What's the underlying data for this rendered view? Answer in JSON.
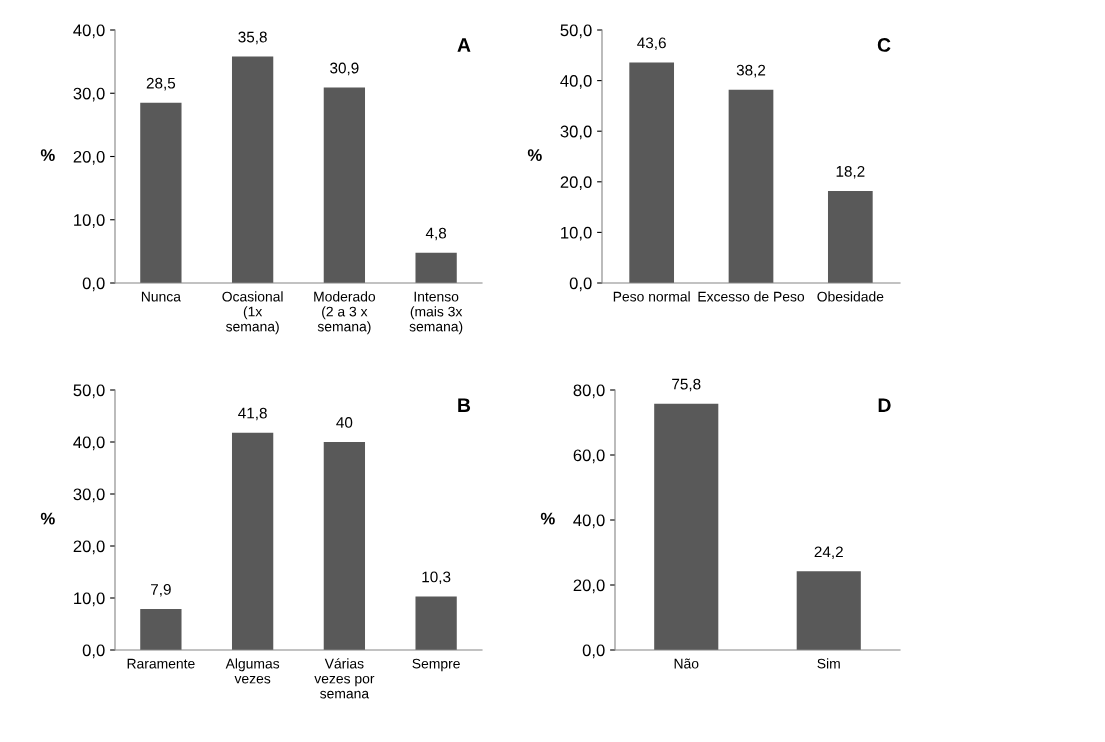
{
  "chart_data": [
    {
      "type": "bar",
      "ylabel": "%",
      "annotations": [
        "A"
      ],
      "categories": [
        "Nunca",
        "Ocasional\n(1x\nsemana)",
        "Moderado\n(2 a 3 x\nsemana)",
        "Intenso\n(mais 3x\nsemana)"
      ],
      "values": [
        28.5,
        35.8,
        30.9,
        4.8
      ],
      "value_labels": [
        "28,5",
        "35,8",
        "30,9",
        "4,8"
      ],
      "color": "#595959",
      "ylim": [
        0,
        40
      ],
      "yticks": [
        {
          "value": 0,
          "label": "0,0"
        },
        {
          "value": 10,
          "label": "10,0"
        },
        {
          "value": 20,
          "label": "20,0"
        },
        {
          "value": 30,
          "label": "30,0"
        },
        {
          "value": 40,
          "label": "40,0"
        }
      ]
    },
    {
      "type": "bar",
      "ylabel": "%",
      "annotations": [
        "C"
      ],
      "categories": [
        "Peso normal",
        "Excesso de Peso",
        "Obesidade"
      ],
      "values": [
        43.6,
        38.2,
        18.2
      ],
      "value_labels": [
        "43,6",
        "38,2",
        "18,2"
      ],
      "color": "#595959",
      "ylim": [
        0,
        50
      ],
      "yticks": [
        {
          "value": 0,
          "label": "0,0"
        },
        {
          "value": 10,
          "label": "10,0"
        },
        {
          "value": 20,
          "label": "20,0"
        },
        {
          "value": 30,
          "label": "30,0"
        },
        {
          "value": 40,
          "label": "40,0"
        },
        {
          "value": 50,
          "label": "50,0"
        }
      ]
    },
    {
      "type": "bar",
      "ylabel": "%",
      "annotations": [
        "B"
      ],
      "categories": [
        "Raramente",
        "Algumas\nvezes",
        "Várias\nvezes por\nsemana",
        "Sempre"
      ],
      "values": [
        7.9,
        41.8,
        40,
        10.3
      ],
      "value_labels": [
        "7,9",
        "41,8",
        "40",
        "10,3"
      ],
      "color": "#595959",
      "ylim": [
        0,
        50
      ],
      "yticks": [
        {
          "value": 0,
          "label": "0,0"
        },
        {
          "value": 10,
          "label": "10,0"
        },
        {
          "value": 20,
          "label": "20,0"
        },
        {
          "value": 30,
          "label": "30,0"
        },
        {
          "value": 40,
          "label": "40,0"
        },
        {
          "value": 50,
          "label": "50,0"
        }
      ]
    },
    {
      "type": "bar",
      "ylabel": "%",
      "annotations": [
        "D"
      ],
      "categories": [
        "Não",
        "Sim"
      ],
      "values": [
        75.8,
        24.2
      ],
      "value_labels": [
        "75,8",
        "24,2"
      ],
      "color": "#595959",
      "ylim": [
        0,
        80
      ],
      "yticks": [
        {
          "value": 0,
          "label": "0,0"
        },
        {
          "value": 20,
          "label": "20,0"
        },
        {
          "value": 40,
          "label": "40,0"
        },
        {
          "value": 60,
          "label": "60,0"
        },
        {
          "value": 80,
          "label": "80,0"
        }
      ]
    }
  ]
}
